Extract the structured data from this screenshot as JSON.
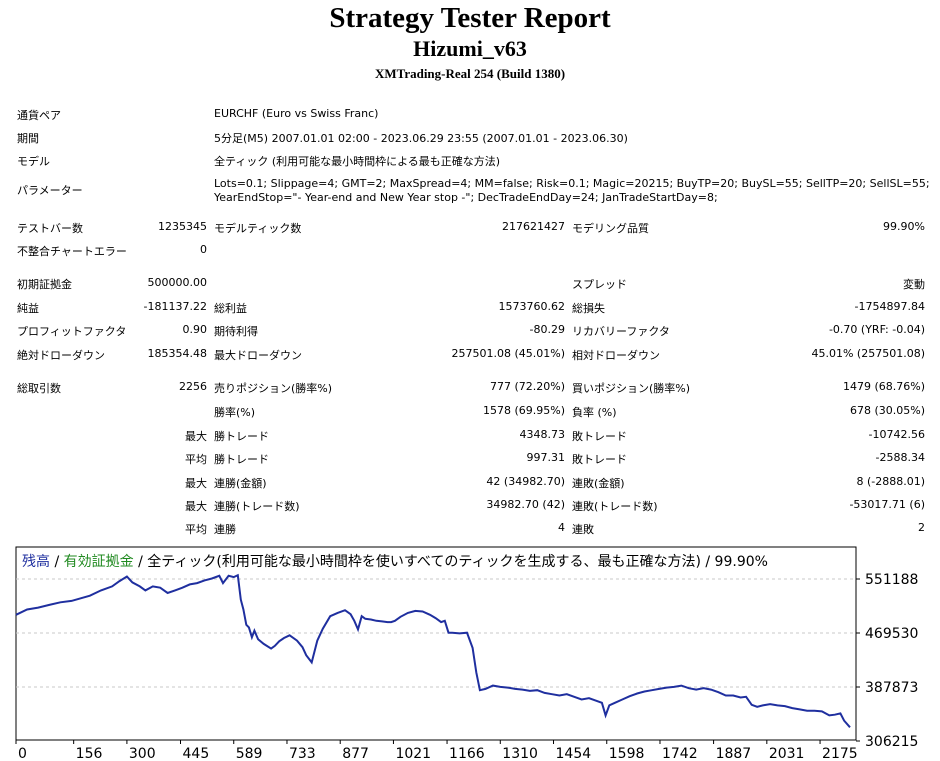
{
  "report": {
    "title": "Strategy Tester Report",
    "subtitle": "Hizumi_v63",
    "build": "XMTrading-Real 254 (Build 1380)"
  },
  "info": [
    {
      "label": "通貨ペア",
      "value": "EURCHF (Euro vs Swiss Franc)"
    },
    {
      "label": "期間",
      "value": "5分足(M5) 2007.01.01 02:00 - 2023.06.29 23:55 (2007.01.01 - 2023.06.30)"
    },
    {
      "label": "モデル",
      "value": "全ティック (利用可能な最小時間枠による最も正確な方法)"
    },
    {
      "label": "パラメーター",
      "value": "Lots=0.1; Slippage=4; GMT=2; MaxSpread=4; MM=false; Risk=0.1; Magic=20215; BuyTP=20; BuySL=55; SellTP=20; SellSL=55;",
      "value2": "YearEndStop=\"- Year-end and New Year stop -\"; DecTradeEndDay=24; JanTradeStartDay=8;"
    }
  ],
  "stats": {
    "bars_label": "テストバー数",
    "bars": "1235345",
    "ticks_label": "モデルティック数",
    "ticks": "217621427",
    "quality_label": "モデリング品質",
    "quality": "99.90%",
    "mismatch_label": "不整合チャートエラー",
    "mismatch": "0",
    "deposit_label": "初期証拠金",
    "deposit": "500000.00",
    "spread_label": "スプレッド",
    "spread": "変動",
    "net_label": "純益",
    "net": "-181137.22",
    "gross_profit_label": "総利益",
    "gross_profit": "1573760.62",
    "gross_loss_label": "総損失",
    "gross_loss": "-1754897.84",
    "pf_label": "プロフィットファクタ",
    "pf": "0.90",
    "payoff_label": "期待利得",
    "payoff": "-80.29",
    "rf_label": "リカバリーファクタ",
    "rf": "-0.70 (YRF: -0.04)",
    "abs_dd_label": "絶対ドローダウン",
    "abs_dd": "185354.48",
    "max_dd_label": "最大ドローダウン",
    "max_dd": "257501.08 (45.01%)",
    "rel_dd_label": "相対ドローダウン",
    "rel_dd": "45.01% (257501.08)",
    "total_trades_label": "総取引数",
    "total_trades": "2256",
    "short_label": "売りポジション(勝率%)",
    "short": "777 (72.20%)",
    "long_label": "買いポジション(勝率%)",
    "long": "1479 (68.76%)",
    "win_rate_label": "勝率(%)",
    "win_rate": "1578 (69.95%)",
    "loss_rate_label": "負率 (%)",
    "loss_rate": "678 (30.05%)",
    "max_label": "最大",
    "avg_label": "平均",
    "largest_win_label": "勝トレード",
    "largest_win": "4348.73",
    "largest_loss_label": "敗トレード",
    "largest_loss": "-10742.56",
    "avg_win_label": "勝トレード",
    "avg_win": "997.31",
    "avg_loss_label": "敗トレード",
    "avg_loss": "-2588.34",
    "max_cons_wins_label": "連勝(金額)",
    "max_cons_wins": "42 (34982.70)",
    "max_cons_losses_label": "連敗(金額)",
    "max_cons_losses": "8 (-2888.01)",
    "max_cons_profit_label": "連勝(トレード数)",
    "max_cons_profit": "34982.70 (42)",
    "max_cons_loss_label": "連敗(トレード数)",
    "max_cons_loss": "-53017.71 (6)",
    "avg_cons_wins_label": "連勝",
    "avg_cons_wins": "4",
    "avg_cons_losses_label": "連敗",
    "avg_cons_losses": "2"
  },
  "legend": {
    "balance": "残高",
    "sep1": " / ",
    "equity": "有効証拠金",
    "rest": " / 全ティック(利用可能な最小時間枠を使いすべてのティックを生成する、最も正確な方法) / 99.90%"
  },
  "colors": {
    "balance_line": "#1f2f9f",
    "equity_text": "#218a21",
    "grid": "#c8c8c8"
  },
  "chart_data": {
    "type": "line",
    "title": "",
    "x_ticks": [
      "0",
      "156",
      "300",
      "445",
      "589",
      "733",
      "877",
      "1021",
      "1166",
      "1310",
      "1454",
      "1598",
      "1742",
      "1887",
      "2031",
      "2175"
    ],
    "y_ticks": [
      "551188",
      "469530",
      "387873",
      "306215"
    ],
    "xlim": [
      0,
      2256
    ],
    "ylim": [
      306215,
      551188
    ],
    "series": [
      {
        "name": "残高",
        "points": [
          [
            0,
            497000
          ],
          [
            30,
            505000
          ],
          [
            60,
            508000
          ],
          [
            90,
            512000
          ],
          [
            120,
            516000
          ],
          [
            150,
            518000
          ],
          [
            175,
            522000
          ],
          [
            200,
            526000
          ],
          [
            230,
            534000
          ],
          [
            260,
            540000
          ],
          [
            280,
            548000
          ],
          [
            300,
            555000
          ],
          [
            315,
            546000
          ],
          [
            335,
            540000
          ],
          [
            350,
            534000
          ],
          [
            370,
            540000
          ],
          [
            390,
            538000
          ],
          [
            410,
            530000
          ],
          [
            430,
            534000
          ],
          [
            450,
            538000
          ],
          [
            470,
            543000
          ],
          [
            490,
            545000
          ],
          [
            510,
            549000
          ],
          [
            530,
            552000
          ],
          [
            550,
            556000
          ],
          [
            560,
            545000
          ],
          [
            575,
            556000
          ],
          [
            589,
            554000
          ],
          [
            600,
            557000
          ],
          [
            608,
            520000
          ],
          [
            615,
            505000
          ],
          [
            623,
            482000
          ],
          [
            630,
            478000
          ],
          [
            638,
            463000
          ],
          [
            645,
            473000
          ],
          [
            655,
            460000
          ],
          [
            670,
            453000
          ],
          [
            690,
            446000
          ],
          [
            700,
            450000
          ],
          [
            712,
            457000
          ],
          [
            725,
            462000
          ],
          [
            740,
            466000
          ],
          [
            760,
            458000
          ],
          [
            775,
            448000
          ],
          [
            785,
            436000
          ],
          [
            800,
            425000
          ],
          [
            815,
            458000
          ],
          [
            830,
            476000
          ],
          [
            850,
            495000
          ],
          [
            870,
            500000
          ],
          [
            890,
            504000
          ],
          [
            905,
            498000
          ],
          [
            915,
            488000
          ],
          [
            925,
            475000
          ],
          [
            935,
            495000
          ],
          [
            945,
            491000
          ],
          [
            960,
            490000
          ],
          [
            975,
            488000
          ],
          [
            990,
            487000
          ],
          [
            1005,
            486000
          ],
          [
            1015,
            486000
          ],
          [
            1025,
            488000
          ],
          [
            1040,
            494000
          ],
          [
            1060,
            500000
          ],
          [
            1080,
            503000
          ],
          [
            1100,
            502000
          ],
          [
            1120,
            497000
          ],
          [
            1135,
            492000
          ],
          [
            1150,
            486000
          ],
          [
            1160,
            488000
          ],
          [
            1170,
            470000
          ],
          [
            1180,
            470000
          ],
          [
            1200,
            469000
          ],
          [
            1220,
            470000
          ],
          [
            1235,
            447000
          ],
          [
            1245,
            410000
          ],
          [
            1255,
            383000
          ],
          [
            1270,
            385000
          ],
          [
            1290,
            390000
          ],
          [
            1310,
            388000
          ],
          [
            1330,
            387000
          ],
          [
            1350,
            385000
          ],
          [
            1370,
            384000
          ],
          [
            1390,
            382000
          ],
          [
            1410,
            383000
          ],
          [
            1430,
            379000
          ],
          [
            1450,
            377000
          ],
          [
            1470,
            375000
          ],
          [
            1490,
            377000
          ],
          [
            1510,
            373000
          ],
          [
            1530,
            369000
          ],
          [
            1550,
            371000
          ],
          [
            1570,
            367000
          ],
          [
            1585,
            364000
          ],
          [
            1595,
            345000
          ],
          [
            1605,
            360000
          ],
          [
            1620,
            364000
          ],
          [
            1640,
            369000
          ],
          [
            1660,
            374000
          ],
          [
            1680,
            378000
          ],
          [
            1700,
            381000
          ],
          [
            1720,
            383000
          ],
          [
            1740,
            385000
          ],
          [
            1760,
            387000
          ],
          [
            1780,
            388000
          ],
          [
            1800,
            390000
          ],
          [
            1820,
            386000
          ],
          [
            1840,
            384000
          ],
          [
            1860,
            386000
          ],
          [
            1880,
            384000
          ],
          [
            1900,
            380000
          ],
          [
            1920,
            375000
          ],
          [
            1940,
            375000
          ],
          [
            1960,
            372000
          ],
          [
            1975,
            373000
          ],
          [
            1990,
            361000
          ],
          [
            2005,
            358000
          ],
          [
            2020,
            360000
          ],
          [
            2040,
            362000
          ],
          [
            2060,
            360000
          ],
          [
            2080,
            359000
          ],
          [
            2100,
            356000
          ],
          [
            2120,
            354000
          ],
          [
            2140,
            352000
          ],
          [
            2160,
            352000
          ],
          [
            2180,
            351000
          ],
          [
            2200,
            345000
          ],
          [
            2215,
            346000
          ],
          [
            2230,
            348000
          ],
          [
            2240,
            337000
          ],
          [
            2256,
            327000
          ]
        ]
      }
    ]
  }
}
